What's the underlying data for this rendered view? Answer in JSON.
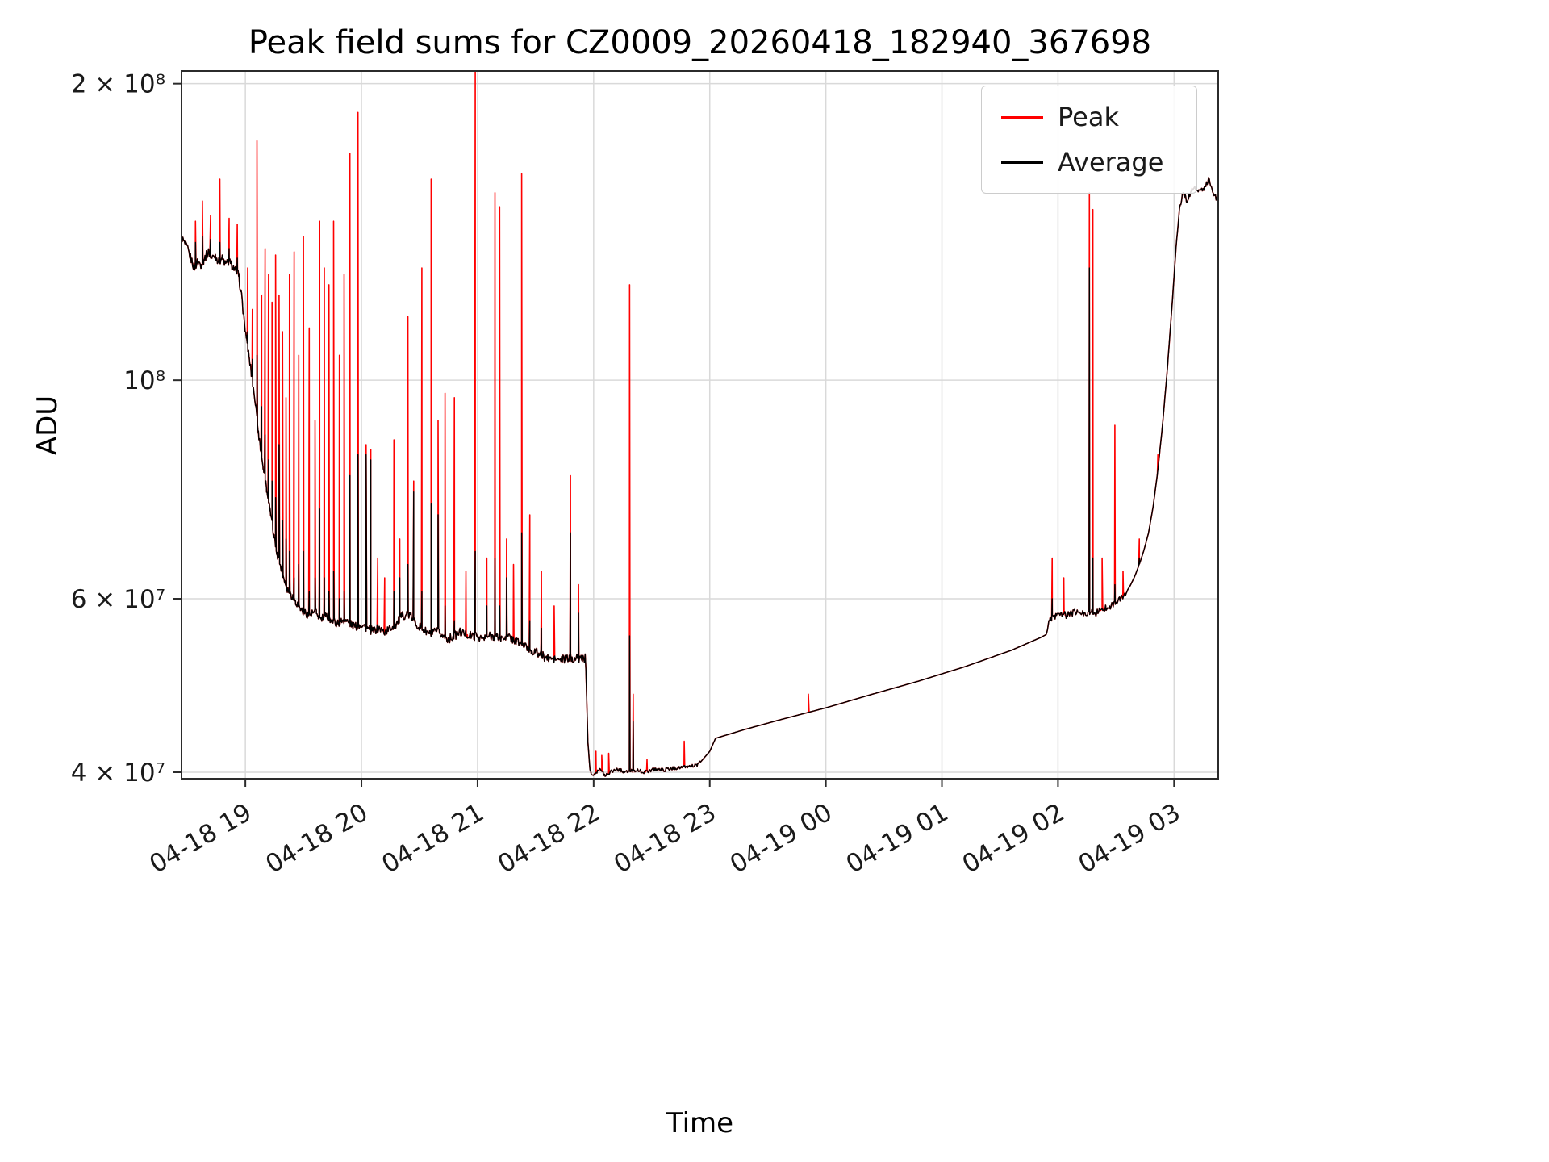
{
  "chart_data": {
    "type": "line",
    "title": "Peak field sums for CZ0009_20260418_182940_367698",
    "xlabel": "Time",
    "ylabel": "ADU",
    "y_scale": "log",
    "grid": true,
    "legend_position": "upper right",
    "x_unit": "hours since 2026-04-18 00:00",
    "x_range": [
      18.45,
      27.38
    ],
    "y_range": [
      39400000.0,
      206000000.0
    ],
    "x_ticks": [
      {
        "v": 19,
        "label": "04-18 19"
      },
      {
        "v": 20,
        "label": "04-18 20"
      },
      {
        "v": 21,
        "label": "04-18 21"
      },
      {
        "v": 22,
        "label": "04-18 22"
      },
      {
        "v": 23,
        "label": "04-18 23"
      },
      {
        "v": 24,
        "label": "04-19 00"
      },
      {
        "v": 25,
        "label": "04-19 01"
      },
      {
        "v": 26,
        "label": "04-19 02"
      },
      {
        "v": 27,
        "label": "04-19 03"
      }
    ],
    "y_ticks": [
      {
        "v": 40000000.0,
        "label": "4 × 10⁷"
      },
      {
        "v": 60000000.0,
        "label": "6 × 10⁷"
      },
      {
        "v": 100000000.0,
        "label": "10⁸"
      },
      {
        "v": 200000000.0,
        "label": "2 × 10⁸"
      }
    ],
    "colors": {
      "grid": "#d9d9d9",
      "spine": "#2b2b2b",
      "background": "#ffffff",
      "text": "#1a1a1a"
    },
    "series": [
      {
        "name": "Peak",
        "color": "#ff0000",
        "role": "peak"
      },
      {
        "name": "Average",
        "color": "#000000",
        "role": "average"
      }
    ],
    "average_anchors": [
      [
        18.45,
        140000000.0
      ],
      [
        18.47,
        138000000.0
      ],
      [
        18.5,
        136000000.0
      ],
      [
        18.53,
        133000000.0
      ],
      [
        18.56,
        130000000.0
      ],
      [
        18.59,
        132000000.0
      ],
      [
        18.62,
        131000000.0
      ],
      [
        18.65,
        133000000.0
      ],
      [
        18.68,
        135000000.0
      ],
      [
        18.71,
        133000000.0
      ],
      [
        18.74,
        134000000.0
      ],
      [
        18.77,
        132000000.0
      ],
      [
        18.8,
        133000000.0
      ],
      [
        18.83,
        131000000.0
      ],
      [
        18.86,
        132000000.0
      ],
      [
        18.9,
        130000000.0
      ],
      [
        18.94,
        128000000.0
      ],
      [
        18.97,
        121000000.0
      ],
      [
        19.0,
        112000000.0
      ],
      [
        19.03,
        106000000.0
      ],
      [
        19.06,
        100000000.0
      ],
      [
        19.09,
        94000000.0
      ],
      [
        19.12,
        87000000.0
      ],
      [
        19.15,
        82000000.0
      ],
      [
        19.18,
        78000000.0
      ],
      [
        19.21,
        74000000.0
      ],
      [
        19.24,
        70000000.0
      ],
      [
        19.27,
        67000000.0
      ],
      [
        19.3,
        65000000.0
      ],
      [
        19.33,
        63000000.0
      ],
      [
        19.36,
        61500000.0
      ],
      [
        19.4,
        60500000.0
      ],
      [
        19.44,
        59500000.0
      ],
      [
        19.48,
        58500000.0
      ],
      [
        19.52,
        58000000.0
      ],
      [
        19.56,
        57800000.0
      ],
      [
        19.6,
        58200000.0
      ],
      [
        19.65,
        57200000.0
      ],
      [
        19.7,
        57600000.0
      ],
      [
        19.75,
        57000000.0
      ],
      [
        19.8,
        56600000.0
      ],
      [
        19.85,
        57200000.0
      ],
      [
        19.9,
        56600000.0
      ],
      [
        19.95,
        56200000.0
      ],
      [
        20.0,
        56600000.0
      ],
      [
        20.05,
        56000000.0
      ],
      [
        20.1,
        55600000.0
      ],
      [
        20.15,
        56000000.0
      ],
      [
        20.2,
        55500000.0
      ],
      [
        20.25,
        56000000.0
      ],
      [
        20.3,
        56600000.0
      ],
      [
        20.35,
        57600000.0
      ],
      [
        20.4,
        58000000.0
      ],
      [
        20.45,
        57000000.0
      ],
      [
        20.5,
        56200000.0
      ],
      [
        20.55,
        55600000.0
      ],
      [
        20.6,
        55200000.0
      ],
      [
        20.65,
        55600000.0
      ],
      [
        20.7,
        55000000.0
      ],
      [
        20.75,
        54600000.0
      ],
      [
        20.8,
        55000000.0
      ],
      [
        20.85,
        55500000.0
      ],
      [
        20.9,
        55200000.0
      ],
      [
        20.95,
        55000000.0
      ],
      [
        21.0,
        55000000.0
      ],
      [
        21.05,
        54600000.0
      ],
      [
        21.1,
        55000000.0
      ],
      [
        21.15,
        55000000.0
      ],
      [
        21.2,
        54600000.0
      ],
      [
        21.25,
        55000000.0
      ],
      [
        21.3,
        54600000.0
      ],
      [
        21.35,
        54200000.0
      ],
      [
        21.4,
        53800000.0
      ],
      [
        21.45,
        53200000.0
      ],
      [
        21.5,
        53000000.0
      ],
      [
        21.55,
        52600000.0
      ],
      [
        21.6,
        52200000.0
      ],
      [
        21.7,
        52000000.0
      ],
      [
        21.8,
        52200000.0
      ],
      [
        21.93,
        52200000.0
      ],
      [
        21.95,
        43000000.0
      ],
      [
        21.97,
        40000000.0
      ],
      [
        22.0,
        39800000.0
      ],
      [
        22.05,
        40300000.0
      ],
      [
        22.1,
        39700000.0
      ],
      [
        22.15,
        40100000.0
      ],
      [
        22.2,
        40300000.0
      ],
      [
        22.28,
        40000000.0
      ],
      [
        22.36,
        40200000.0
      ],
      [
        22.44,
        40000000.0
      ],
      [
        22.52,
        40300000.0
      ],
      [
        22.6,
        40200000.0
      ],
      [
        22.7,
        40400000.0
      ],
      [
        22.8,
        40500000.0
      ],
      [
        22.9,
        40700000.0
      ],
      [
        23.0,
        42000000.0
      ],
      [
        23.05,
        43300000.0
      ],
      [
        23.3,
        44200000.0
      ],
      [
        23.6,
        45200000.0
      ],
      [
        24.0,
        46500000.0
      ],
      [
        24.4,
        48000000.0
      ],
      [
        24.8,
        49500000.0
      ],
      [
        25.2,
        51200000.0
      ],
      [
        25.6,
        53200000.0
      ],
      [
        25.85,
        54800000.0
      ],
      [
        25.9,
        55200000.0
      ],
      [
        25.93,
        57200000.0
      ],
      [
        25.97,
        57600000.0
      ],
      [
        26.02,
        58000000.0
      ],
      [
        26.07,
        57700000.0
      ],
      [
        26.12,
        58000000.0
      ],
      [
        26.17,
        58200000.0
      ],
      [
        26.22,
        57900000.0
      ],
      [
        26.27,
        58200000.0
      ],
      [
        26.32,
        58000000.0
      ],
      [
        26.37,
        58400000.0
      ],
      [
        26.42,
        58800000.0
      ],
      [
        26.47,
        59200000.0
      ],
      [
        26.52,
        59700000.0
      ],
      [
        26.57,
        60500000.0
      ],
      [
        26.62,
        61800000.0
      ],
      [
        26.66,
        63200000.0
      ],
      [
        26.7,
        65000000.0
      ],
      [
        26.74,
        67200000.0
      ],
      [
        26.78,
        70000000.0
      ],
      [
        26.82,
        74500000.0
      ],
      [
        26.86,
        81000000.0
      ],
      [
        26.9,
        90000000.0
      ],
      [
        26.94,
        102000000.0
      ],
      [
        26.98,
        118000000.0
      ],
      [
        27.02,
        138000000.0
      ],
      [
        27.05,
        150000000.0
      ],
      [
        27.08,
        155000000.0
      ],
      [
        27.11,
        152000000.0
      ],
      [
        27.14,
        155000000.0
      ],
      [
        27.18,
        157000000.0
      ],
      [
        27.22,
        155000000.0
      ],
      [
        27.26,
        157000000.0
      ],
      [
        27.3,
        160000000.0
      ],
      [
        27.33,
        156000000.0
      ],
      [
        27.36,
        153000000.0
      ]
    ],
    "spikes": [
      [
        18.57,
        145000000.0,
        138000000.0
      ],
      [
        18.63,
        152000000.0,
        140000000.0
      ],
      [
        18.7,
        147000000.0,
        139000000.0
      ],
      [
        18.78,
        160000000.0,
        138000000.0
      ],
      [
        18.86,
        146000000.0,
        136000000.0
      ],
      [
        18.93,
        144000000.0,
        133000000.0
      ],
      [
        19.02,
        130000000.0,
        112000000.0
      ],
      [
        19.06,
        118000000.0,
        105000000.0
      ],
      [
        19.1,
        175000000.0,
        106000000.0
      ],
      [
        19.14,
        122000000.0,
        94000000.0
      ],
      [
        19.17,
        136000000.0,
        88000000.0
      ],
      [
        19.2,
        128000000.0,
        83000000.0
      ],
      [
        19.23,
        120000000.0,
        79000000.0
      ],
      [
        19.26,
        134000000.0,
        76000000.0
      ],
      [
        19.29,
        122000000.0,
        86000000.0
      ],
      [
        19.32,
        112000000.0,
        72000000.0
      ],
      [
        19.35,
        96000000.0,
        69000000.0
      ],
      [
        19.38,
        128000000.0,
        67000000.0
      ],
      [
        19.42,
        135000000.0,
        63000000.0
      ],
      [
        19.46,
        106000000.0,
        65000000.0
      ],
      [
        19.5,
        140000000.0,
        67000000.0
      ],
      [
        19.55,
        113000000.0,
        61000000.0
      ],
      [
        19.6,
        91000000.0,
        63000000.0
      ],
      [
        19.64,
        145000000.0,
        74000000.0
      ],
      [
        19.68,
        130000000.0,
        63000000.0
      ],
      [
        19.72,
        125000000.0,
        61000000.0
      ],
      [
        19.76,
        145000000.0,
        64000000.0
      ],
      [
        19.81,
        106000000.0,
        60000000.0
      ],
      [
        19.85,
        128000000.0,
        61000000.0
      ],
      [
        19.9,
        170000000.0,
        80000000.0
      ],
      [
        19.97,
        187000000.0,
        84000000.0
      ],
      [
        20.04,
        86000000.0,
        84000000.0
      ],
      [
        20.08,
        85000000.0,
        83000000.0
      ],
      [
        20.14,
        66000000.0,
        null
      ],
      [
        20.2,
        63000000.0,
        null
      ],
      [
        20.28,
        87000000.0,
        61000000.0
      ],
      [
        20.33,
        69000000.0,
        63000000.0
      ],
      [
        20.4,
        116000000.0,
        65000000.0
      ],
      [
        20.45,
        79000000.0,
        77000000.0
      ],
      [
        20.52,
        130000000.0,
        61000000.0
      ],
      [
        20.6,
        160000000.0,
        75000000.0
      ],
      [
        20.66,
        91000000.0,
        73000000.0
      ],
      [
        20.72,
        97000000.0,
        59000000.0
      ],
      [
        20.8,
        96000000.0,
        57000000.0
      ],
      [
        20.9,
        64000000.0,
        null
      ],
      [
        20.98,
        210000000.0,
        67000000.0
      ],
      [
        21.08,
        66000000.0,
        59000000.0
      ],
      [
        21.15,
        155000000.0,
        66000000.0
      ],
      [
        21.19,
        150000000.0,
        59000000.0
      ],
      [
        21.25,
        69000000.0,
        63000000.0
      ],
      [
        21.31,
        65000000.0,
        null
      ],
      [
        21.38,
        162000000.0,
        70000000.0
      ],
      [
        21.45,
        73000000.0,
        57000000.0
      ],
      [
        21.55,
        64000000.0,
        56000000.0
      ],
      [
        21.66,
        59000000.0,
        null
      ],
      [
        21.8,
        80000000.0,
        70000000.0
      ],
      [
        21.87,
        62000000.0,
        58000000.0
      ],
      [
        22.02,
        42000000.0,
        null
      ],
      [
        22.07,
        41600000.0,
        null
      ],
      [
        22.13,
        41800000.0,
        null
      ],
      [
        22.31,
        125000000.0,
        55000000.0
      ],
      [
        22.34,
        48000000.0,
        45000000.0
      ],
      [
        22.46,
        41200000.0,
        null
      ],
      [
        22.78,
        43000000.0,
        null
      ],
      [
        23.85,
        48000000.0,
        null
      ],
      [
        25.95,
        66000000.0,
        60000000.0
      ],
      [
        26.05,
        63000000.0,
        null
      ],
      [
        26.27,
        155000000.0,
        130000000.0
      ],
      [
        26.3,
        149000000.0,
        66000000.0
      ],
      [
        26.38,
        66000000.0,
        null
      ],
      [
        26.49,
        90000000.0,
        62000000.0
      ],
      [
        26.56,
        64000000.0,
        null
      ],
      [
        26.7,
        69000000.0,
        66000000.0
      ],
      [
        26.86,
        84000000.0,
        null
      ],
      [
        26.95,
        106000000.0,
        null
      ]
    ],
    "noise_regions": [
      [
        18.45,
        21.94,
        0.0045
      ],
      [
        21.97,
        22.92,
        0.0018
      ],
      [
        25.91,
        26.6,
        0.0035
      ],
      [
        27.04,
        27.38,
        0.0028
      ]
    ]
  }
}
